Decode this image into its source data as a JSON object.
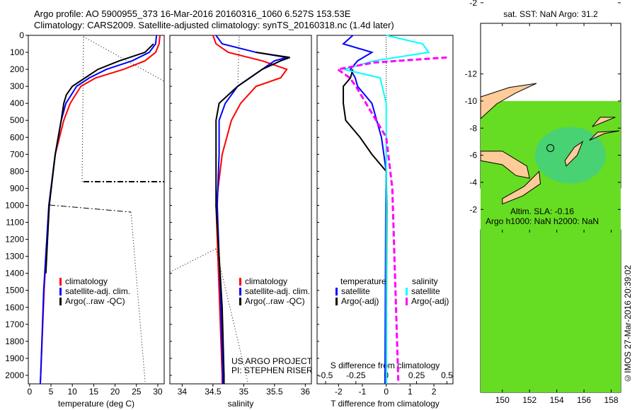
{
  "title_line1": "Argo profile: AO 5900955_373 16-Mar-2016 20160316_1060 6.527S 153.53E",
  "title_line2": "Climatology: CARS2009. Satellite-adjusted climatology: synTS_20160318.nc (1.4d later)",
  "side_label": "©IMOS 27-Mar-2016 20:39:02",
  "colors": {
    "climatology": "#ff0000",
    "satellite": "#0000ff",
    "argo": "#000000",
    "sal_satellite": "#00ffff",
    "sal_argo": "#ff00ff",
    "land": "#ffcc99",
    "float": "#ffff00"
  },
  "chart_data": [
    {
      "type": "line",
      "name": "temperature",
      "xlabel": "temperature (deg C)",
      "ylabel": "",
      "xlim": [
        -0.3,
        31.5
      ],
      "ylim": [
        2050,
        0
      ],
      "xticks": [
        "0",
        "5",
        "10",
        "15",
        "20",
        "25",
        "30"
      ],
      "xtickvals": [
        0,
        5,
        10,
        15,
        20,
        25,
        30
      ],
      "yticks": [
        "0",
        "100",
        "200",
        "300",
        "400",
        "500",
        "600",
        "700",
        "800",
        "900",
        "1000",
        "1100",
        "1200",
        "1300",
        "1400",
        "1500",
        "1600",
        "1700",
        "1800",
        "1900",
        "2000"
      ],
      "legend": [
        "climatology",
        "satellite-adj. clim.",
        "Argo(..raw -QC)"
      ],
      "series": [
        {
          "name": "climatology",
          "color": "#ff0000",
          "depth": [
            0,
            50,
            100,
            150,
            200,
            250,
            300,
            400,
            500,
            600,
            700,
            800,
            1000,
            1200,
            1500,
            2000,
            2050
          ],
          "values": [
            30.5,
            30.3,
            29.5,
            27,
            22,
            15.5,
            12,
            9.5,
            8,
            7,
            6,
            5.5,
            4.6,
            4.1,
            3.4,
            2.6,
            2.5
          ]
        },
        {
          "name": "satellite-adj. clim.",
          "color": "#0000ff",
          "depth": [
            0,
            50,
            100,
            150,
            200,
            250,
            300,
            400,
            500,
            700,
            1000,
            1500,
            2000,
            2050
          ],
          "values": [
            29.7,
            29.5,
            28,
            24,
            18,
            14,
            11,
            8.5,
            7.4,
            6,
            4.5,
            3.3,
            2.6,
            2.5
          ]
        },
        {
          "name": "Argo(..raw -QC)",
          "color": "#000000",
          "depth": [
            50,
            100,
            150,
            200,
            250,
            300,
            350,
            400,
            500,
            700,
            1000,
            1400
          ],
          "values": [
            29,
            27,
            21,
            16,
            13,
            10,
            8.6,
            8,
            7.4,
            6,
            4.6,
            3.8
          ]
        }
      ]
    },
    {
      "type": "line",
      "name": "salinity",
      "xlabel": "salinity",
      "xlim": [
        33.8,
        36.1
      ],
      "ylim": [
        2050,
        0
      ],
      "xticks": [
        "34",
        "34.5",
        "35",
        "35.5",
        "36"
      ],
      "xtickvals": [
        34,
        34.5,
        35,
        35.5,
        36
      ],
      "legend": [
        "climatology",
        "satellite-adj. clim.",
        "Argo(..raw -QC)"
      ],
      "annotation": [
        "US ARGO PROJECT",
        "PI: STEPHEN RISER"
      ],
      "series": [
        {
          "name": "climatology",
          "color": "#ff0000",
          "depth": [
            0,
            50,
            100,
            150,
            200,
            250,
            300,
            400,
            500,
            700,
            1000,
            1500,
            2000,
            2050
          ],
          "values": [
            34.5,
            34.55,
            34.75,
            35.3,
            35.7,
            35.6,
            35.2,
            34.95,
            34.8,
            34.65,
            34.55,
            34.6,
            34.65,
            34.65
          ]
        },
        {
          "name": "satellite-adj. clim.",
          "color": "#0000ff",
          "depth": [
            0,
            50,
            100,
            130,
            150,
            200,
            250,
            300,
            400,
            500,
            700,
            1000,
            1500,
            2000,
            2050
          ],
          "values": [
            34.55,
            34.65,
            35.2,
            35.7,
            35.5,
            35.3,
            35.1,
            34.9,
            34.7,
            34.6,
            34.6,
            34.57,
            34.62,
            34.66,
            34.66
          ]
        },
        {
          "name": "Argo(..raw -QC)",
          "color": "#000000",
          "depth": [
            100,
            130,
            150,
            200,
            300,
            400,
            500,
            700,
            1000,
            1300,
            1600,
            2000,
            2050
          ],
          "values": [
            35.2,
            35.75,
            35.6,
            35.3,
            34.9,
            34.6,
            34.55,
            34.55,
            34.55,
            34.6,
            34.65,
            34.68,
            34.68
          ]
        }
      ]
    },
    {
      "type": "line",
      "name": "difference",
      "xlabel": "T difference from climatology",
      "x2label": "S difference from climatology",
      "xlim": [
        -2.9,
        2.8
      ],
      "x2lim": [
        -0.57,
        0.55
      ],
      "ylim": [
        2050,
        0
      ],
      "xticks": [
        "-2",
        "-1",
        "0",
        "1",
        "2"
      ],
      "xtickvals": [
        -2,
        -1,
        0,
        1,
        2
      ],
      "x2ticks": [
        "-0.5",
        "-0.25",
        "0",
        "0.25",
        "0.5"
      ],
      "x2tickvals": [
        -0.5,
        -0.25,
        0,
        0.25,
        0.5
      ],
      "legend": {
        "temperature_title": "temperature",
        "salinity_title": "salinity",
        "items": [
          "satellite",
          "Argo(-adj)",
          "satellite",
          "Argo(-adj)"
        ]
      },
      "series": [
        {
          "name": "T satellite",
          "color": "#0000ff",
          "axis": "T",
          "depth": [
            0,
            50,
            100,
            150,
            200,
            250,
            300,
            400,
            600,
            800,
            1000,
            2050
          ],
          "values": [
            -1.4,
            -1.8,
            -0.6,
            -1.2,
            -1.5,
            -1.3,
            -1.2,
            -0.6,
            -0.2,
            0,
            -0.02,
            -0.05
          ]
        },
        {
          "name": "T Argo(-adj)",
          "color": "#000000",
          "axis": "T",
          "depth": [
            200,
            250,
            300,
            400,
            500,
            600,
            700,
            800,
            1000,
            2050
          ],
          "values": [
            -1.4,
            -1.5,
            -1.8,
            -1.8,
            -1.7,
            -1.1,
            -0.6,
            0,
            0.02,
            0
          ]
        },
        {
          "name": "S satellite",
          "color": "#00ffff",
          "axis": "S",
          "depth": [
            0,
            50,
            100,
            150,
            200,
            250,
            400,
            1000,
            2050
          ],
          "values": [
            0,
            0.3,
            0.35,
            -0.1,
            -0.35,
            -0.05,
            0,
            0,
            0
          ]
        },
        {
          "name": "S Argo(-adj)",
          "color": "#ff00ff",
          "axis": "S",
          "depth": [
            130,
            160,
            200,
            250,
            300,
            600,
            900,
            2050
          ],
          "values": [
            0.5,
            -0.1,
            -0.4,
            -0.3,
            -0.25,
            0,
            0.05,
            0.1
          ]
        }
      ]
    },
    {
      "type": "map",
      "name": "sst-map",
      "title": "sat. SST: NaN Argo: 31.2",
      "xticks": [
        "150",
        "152",
        "154",
        "156",
        "158"
      ],
      "yticks": [
        "-2",
        "-4",
        "-6",
        "-8",
        "-10",
        "-12"
      ],
      "float_position": {
        "lon": 153.53,
        "lat": -6.527
      }
    },
    {
      "type": "map",
      "name": "sla-map",
      "title_line1": "Altim. SLA: -0.16",
      "title_line2": "Argo h1000: NaN h2000: NaN",
      "xticks": [
        "150",
        "152",
        "154",
        "156",
        "158"
      ],
      "yticks": [
        "-2",
        "-4",
        "-6",
        "-8",
        "-10",
        "-12"
      ],
      "float_position": {
        "lon": 153.53,
        "lat": -6.527
      }
    }
  ]
}
